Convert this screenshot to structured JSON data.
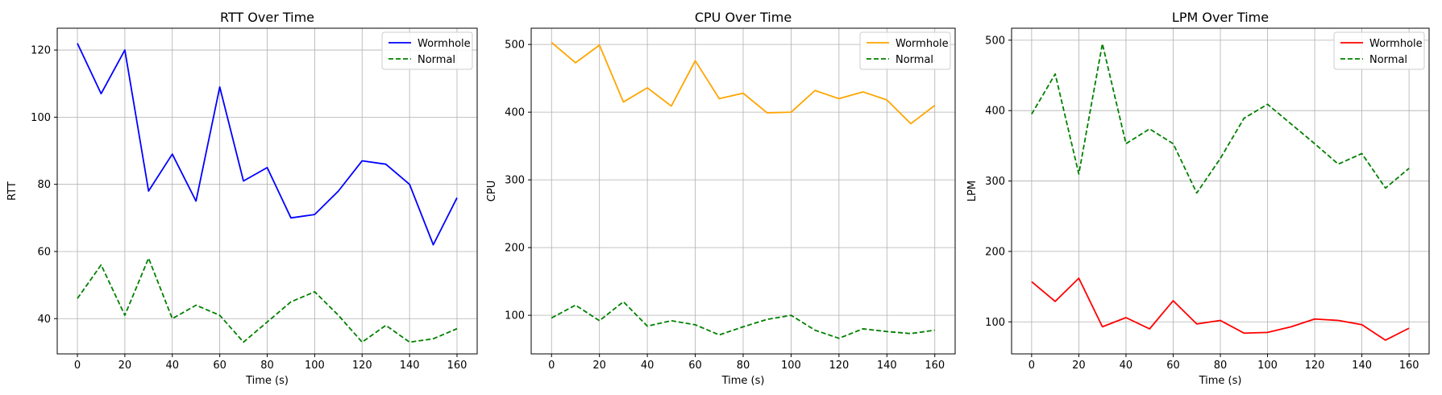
{
  "chart_data": [
    {
      "type": "line",
      "title": "RTT Over Time",
      "xlabel": "Time (s)",
      "ylabel": "RTT",
      "x": [
        0,
        10,
        20,
        30,
        40,
        50,
        60,
        70,
        80,
        90,
        100,
        110,
        120,
        130,
        140,
        150,
        160
      ],
      "xlim": [
        -8.5,
        168.5
      ],
      "ylim": [
        29.5,
        126.5
      ],
      "xticks": [
        0,
        20,
        40,
        60,
        80,
        100,
        120,
        140,
        160
      ],
      "yticks": [
        40,
        60,
        80,
        100,
        120
      ],
      "grid": true,
      "legend": "top-right",
      "series": [
        {
          "name": "Wormhole",
          "color": "#0000ff",
          "style": "solid",
          "values": [
            122,
            107,
            120,
            78,
            89,
            75,
            109,
            81,
            85,
            70,
            71,
            78,
            87,
            86,
            80,
            62,
            76
          ]
        },
        {
          "name": "Normal",
          "color": "#008000",
          "style": "dashed",
          "values": [
            46,
            56,
            41,
            58,
            40,
            44,
            41,
            33,
            39,
            45,
            48,
            41,
            33,
            38,
            33,
            34,
            37
          ]
        }
      ]
    },
    {
      "type": "line",
      "title": "CPU Over Time",
      "xlabel": "Time (s)",
      "ylabel": "CPU",
      "x": [
        0,
        10,
        20,
        30,
        40,
        50,
        60,
        70,
        80,
        90,
        100,
        110,
        120,
        130,
        140,
        150,
        160
      ],
      "xlim": [
        -8.5,
        168.5
      ],
      "ylim": [
        43,
        524
      ],
      "xticks": [
        0,
        20,
        40,
        60,
        80,
        100,
        120,
        140,
        160
      ],
      "yticks": [
        100,
        200,
        300,
        400,
        500
      ],
      "grid": true,
      "legend": "top-right",
      "series": [
        {
          "name": "Wormhole",
          "color": "#ffa500",
          "style": "solid",
          "values": [
            503,
            473,
            499,
            415,
            436,
            409,
            476,
            420,
            428,
            399,
            400,
            432,
            420,
            430,
            418,
            383,
            410
          ]
        },
        {
          "name": "Normal",
          "color": "#008000",
          "style": "dashed",
          "values": [
            96,
            115,
            92,
            120,
            84,
            92,
            86,
            71,
            83,
            94,
            100,
            78,
            66,
            80,
            76,
            73,
            78
          ]
        }
      ]
    },
    {
      "type": "line",
      "title": "LPM Over Time",
      "xlabel": "Time (s)",
      "ylabel": "LPM",
      "x": [
        0,
        10,
        20,
        30,
        40,
        50,
        60,
        70,
        80,
        90,
        100,
        110,
        120,
        130,
        140,
        150,
        160
      ],
      "xlim": [
        -8.5,
        168.5
      ],
      "ylim": [
        54.5,
        517
      ],
      "xticks": [
        0,
        20,
        40,
        60,
        80,
        100,
        120,
        140,
        160
      ],
      "yticks": [
        100,
        200,
        300,
        400,
        500
      ],
      "grid": true,
      "legend": "top-right",
      "series": [
        {
          "name": "Wormhole",
          "color": "#ff0000",
          "style": "solid",
          "values": [
            157,
            129,
            162,
            93,
            106,
            90,
            130,
            97,
            102,
            84,
            85,
            93,
            104,
            102,
            96,
            74,
            91
          ]
        },
        {
          "name": "Normal",
          "color": "#008000",
          "style": "dashed",
          "values": [
            395,
            452,
            310,
            495,
            353,
            374,
            353,
            283,
            332,
            389,
            409,
            381,
            353,
            324,
            339,
            290,
            318
          ]
        }
      ]
    }
  ]
}
